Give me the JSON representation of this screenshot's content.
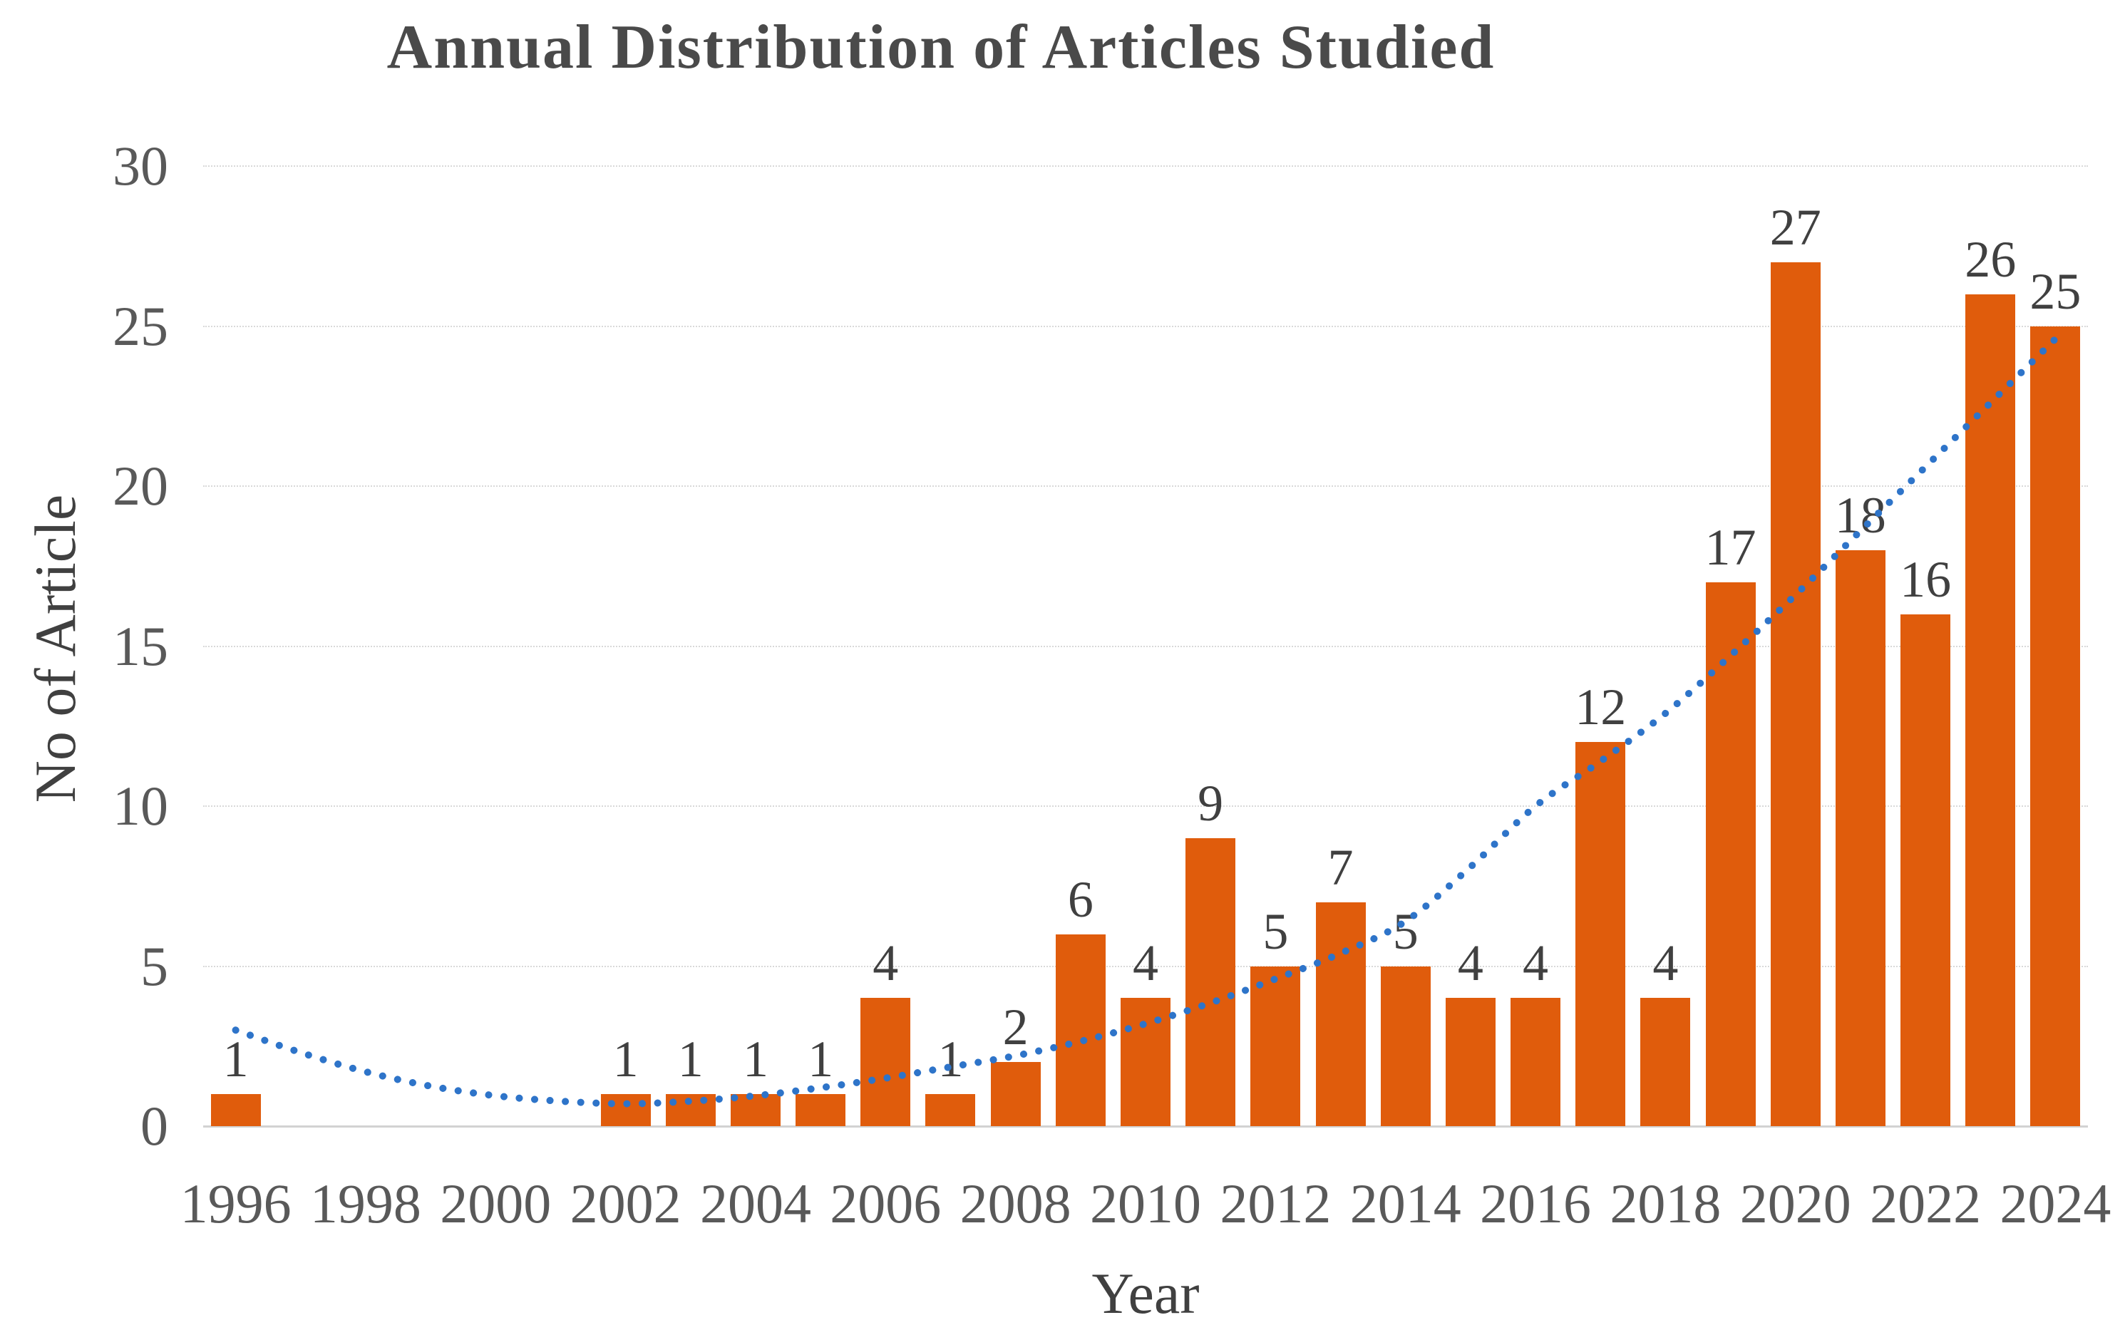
{
  "chart_data": {
    "type": "bar",
    "title": "Annual Distribution of Articles Studied",
    "xlabel": "Year",
    "ylabel": "No of Article",
    "categories": [
      1996,
      1997,
      1998,
      1999,
      2000,
      2001,
      2002,
      2003,
      2004,
      2005,
      2006,
      2007,
      2008,
      2009,
      2010,
      2011,
      2012,
      2013,
      2014,
      2015,
      2016,
      2017,
      2018,
      2019,
      2020,
      2021,
      2022,
      2023,
      2024
    ],
    "values": [
      1,
      0,
      0,
      0,
      0,
      0,
      1,
      1,
      1,
      1,
      4,
      1,
      2,
      6,
      4,
      9,
      5,
      7,
      5,
      4,
      4,
      12,
      4,
      17,
      27,
      18,
      16,
      26,
      25
    ],
    "series": [
      {
        "name": "No of Article",
        "type": "bar",
        "color": "#e05c0c",
        "values": [
          1,
          0,
          0,
          0,
          0,
          0,
          1,
          1,
          1,
          1,
          4,
          1,
          2,
          6,
          4,
          9,
          5,
          7,
          5,
          4,
          4,
          12,
          4,
          17,
          27,
          18,
          16,
          26,
          25
        ]
      },
      {
        "name": "trendline",
        "type": "dotted-line",
        "color": "#2e74c9",
        "points": [
          [
            1996,
            3.0
          ],
          [
            1997,
            2.3
          ],
          [
            1998,
            1.7
          ],
          [
            1999,
            1.25
          ],
          [
            2000,
            0.95
          ],
          [
            2001,
            0.78
          ],
          [
            2002,
            0.7
          ],
          [
            2003,
            0.78
          ],
          [
            2004,
            0.95
          ],
          [
            2005,
            1.2
          ],
          [
            2006,
            1.5
          ],
          [
            2007,
            1.85
          ],
          [
            2008,
            2.2
          ],
          [
            2009,
            2.65
          ],
          [
            2010,
            3.2
          ],
          [
            2011,
            3.85
          ],
          [
            2012,
            4.6
          ],
          [
            2013,
            5.4
          ],
          [
            2014,
            6.4
          ],
          [
            2015,
            8.1
          ],
          [
            2016,
            10.0
          ],
          [
            2017,
            11.4
          ],
          [
            2018,
            12.9
          ],
          [
            2019,
            14.7
          ],
          [
            2020,
            16.6
          ],
          [
            2021,
            18.6
          ],
          [
            2022,
            20.6
          ],
          [
            2023,
            22.6
          ],
          [
            2024,
            24.6
          ]
        ]
      }
    ],
    "x_tick_labels": [
      "1996",
      "1998",
      "2000",
      "2002",
      "2004",
      "2006",
      "2008",
      "2010",
      "2012",
      "2014",
      "2016",
      "2018",
      "2020",
      "2022",
      "2024"
    ],
    "y_ticks": [
      0,
      5,
      10,
      15,
      20,
      25,
      30
    ],
    "ylim": [
      0,
      30
    ],
    "grid": "horizontal",
    "legend_position": "none",
    "colors": {
      "bar": "#e05c0c",
      "trendline": "#2e74c9",
      "gridline": "#d9d9d9",
      "axis_line": "#d2d2d2",
      "tick_text": "#595959",
      "data_label_text": "#404040",
      "title_text": "#4a4a4a"
    }
  }
}
